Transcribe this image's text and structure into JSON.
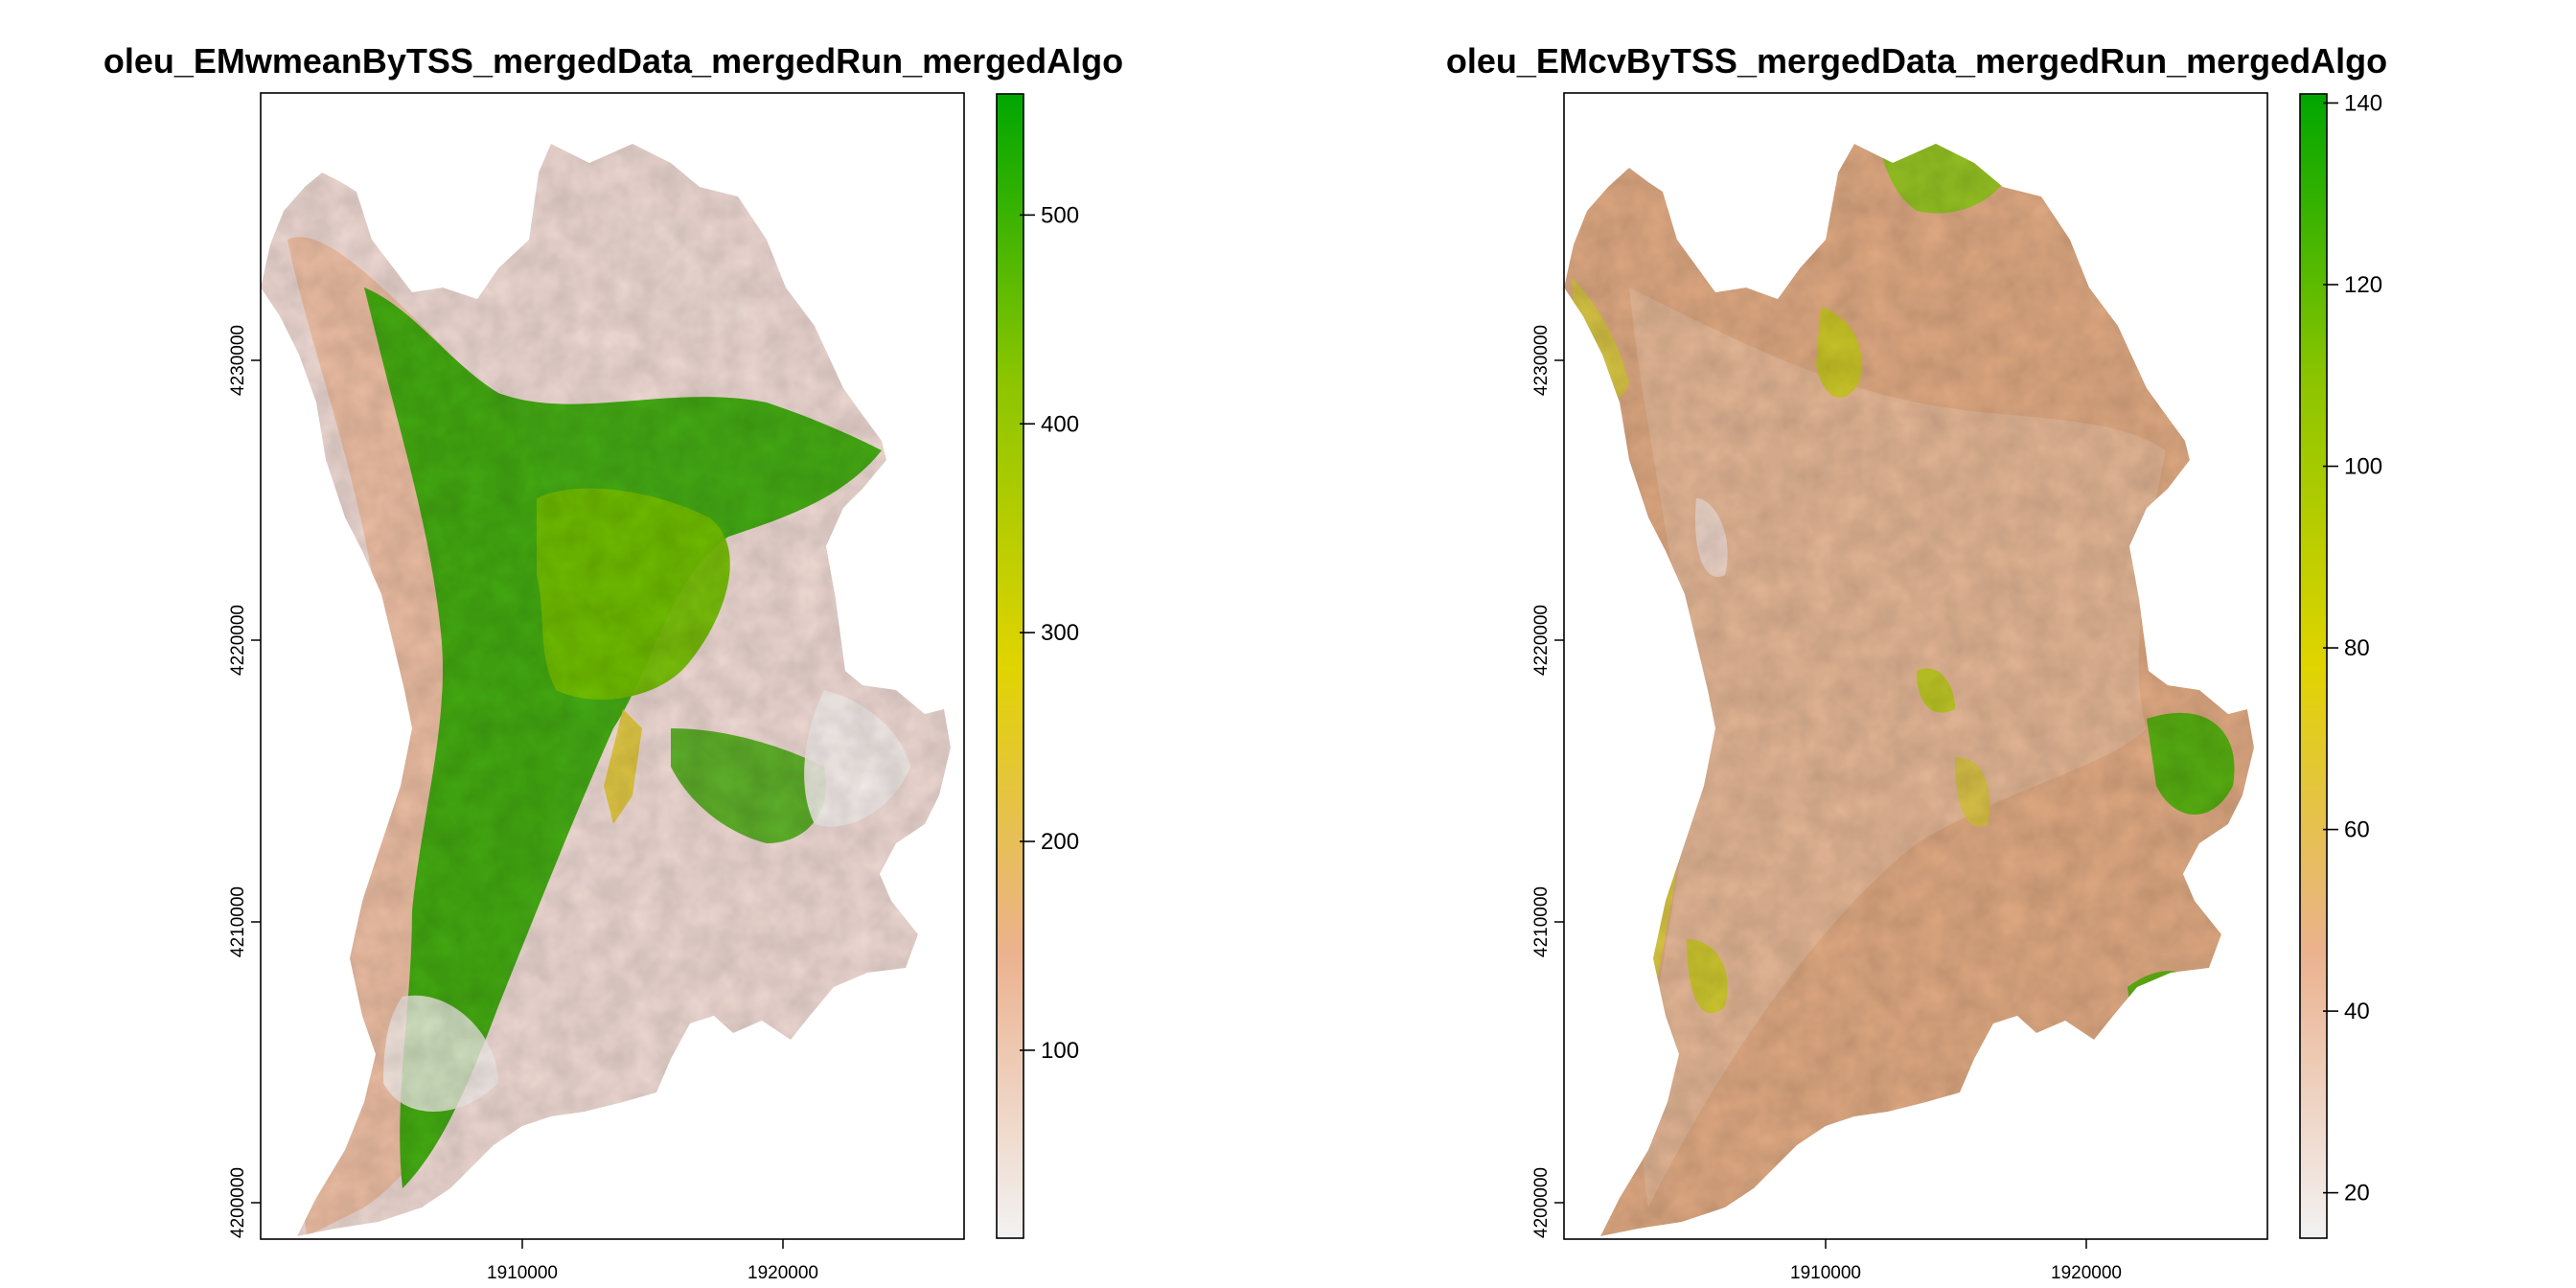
{
  "chart_data": [
    {
      "type": "heatmap",
      "subtype": "raster-map",
      "title": "oleu_EMwmeanByTSS_mergedData_mergedRun_mergedAlgo",
      "xlabel": "",
      "ylabel": "",
      "x_ticks": [
        "1910000",
        "1920000"
      ],
      "y_ticks": [
        "4200000",
        "4210000",
        "4220000",
        "4230000"
      ],
      "colorbar": {
        "ticks": [
          "100",
          "200",
          "300",
          "400",
          "500"
        ],
        "min": 10,
        "max": 558,
        "colors": [
          "#f2f2f2",
          "#ebb28e",
          "#e0d400",
          "#8bc500",
          "#00a600"
        ]
      },
      "grid": false
    },
    {
      "type": "heatmap",
      "subtype": "raster-map",
      "title": "oleu_EMcvByTSS_mergedData_mergedRun_mergedAlgo",
      "xlabel": "",
      "ylabel": "",
      "x_ticks": [
        "1910000",
        "1920000"
      ],
      "y_ticks": [
        "4200000",
        "4210000",
        "4220000",
        "4230000"
      ],
      "colorbar": {
        "ticks": [
          "20",
          "40",
          "60",
          "80",
          "100",
          "120",
          "140"
        ],
        "min": 15,
        "max": 141,
        "colors": [
          "#f2f2f2",
          "#ebb28e",
          "#e0d400",
          "#8bc500",
          "#00a600"
        ]
      },
      "grid": false
    }
  ]
}
